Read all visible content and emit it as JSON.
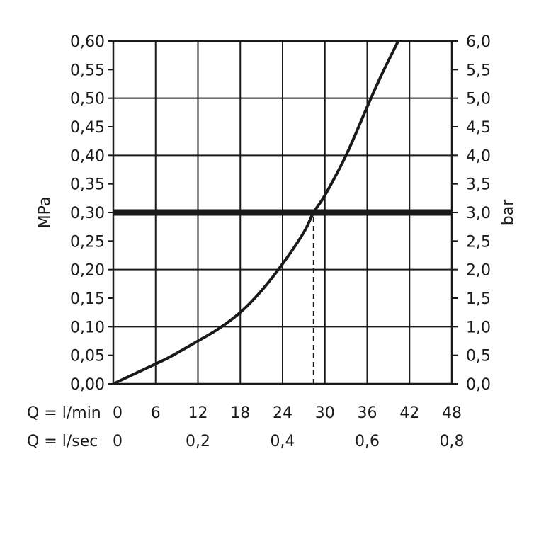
{
  "chart_data": {
    "type": "line",
    "x_axis": {
      "label": "Q = l/min",
      "ticks": [
        "0",
        "6",
        "12",
        "18",
        "24",
        "30",
        "36",
        "42",
        "48"
      ],
      "range": [
        0,
        48
      ]
    },
    "x_axis_secondary": {
      "label": "Q = l/sec",
      "ticks": [
        {
          "value": 0,
          "text": "0"
        },
        {
          "value": 0.2,
          "text": "0,2"
        },
        {
          "value": 0.4,
          "text": "0,4"
        },
        {
          "value": 0.6,
          "text": "0,6"
        },
        {
          "value": 0.8,
          "text": "0,8"
        }
      ]
    },
    "y_axis_left": {
      "label": "MPa",
      "range": [
        0,
        0.6
      ],
      "ticks": [
        "0,00",
        "0,05",
        "0,10",
        "0,15",
        "0,20",
        "0,25",
        "0,30",
        "0,35",
        "0,40",
        "0,45",
        "0,50",
        "0,55",
        "0,60"
      ]
    },
    "y_axis_right": {
      "label": "bar",
      "range": [
        0,
        6
      ],
      "ticks": [
        "0,0",
        "0,5",
        "1,0",
        "1,5",
        "2,0",
        "2,5",
        "3,0",
        "3,5",
        "4,0",
        "4,5",
        "5,0",
        "5,5",
        "6,0"
      ]
    },
    "grid": true,
    "series": [
      {
        "x": [
          0,
          6,
          8,
          12,
          15,
          18,
          21,
          24,
          27,
          28.4,
          30,
          33,
          36,
          38,
          40.4
        ],
        "y": [
          0.0,
          0.035,
          0.047,
          0.075,
          0.097,
          0.125,
          0.163,
          0.21,
          0.265,
          0.3,
          0.33,
          0.4,
          0.485,
          0.54,
          0.6
        ]
      }
    ],
    "reference_line": {
      "y": 0.3
    },
    "marker_line": {
      "x": 28.4,
      "y_from": 0,
      "y_to": 0.3,
      "style": "dashed"
    }
  }
}
